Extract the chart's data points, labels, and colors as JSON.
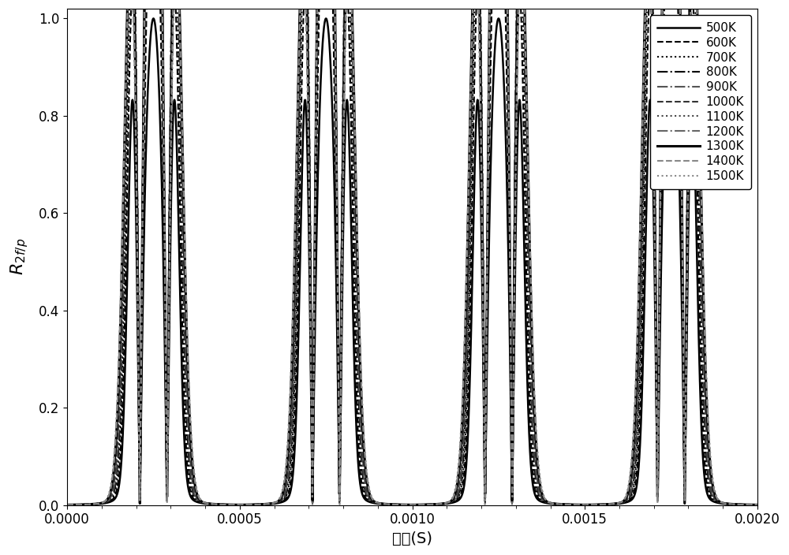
{
  "temperatures": [
    500,
    600,
    700,
    800,
    900,
    1000,
    1100,
    1200,
    1300,
    1400,
    1500
  ],
  "line_styles": [
    "-",
    "--",
    ":",
    "-.",
    "-.",
    "--",
    ":",
    "-.",
    "-",
    "--",
    ":"
  ],
  "line_colors": [
    "#000000",
    "#000000",
    "#000000",
    "#000000",
    "#555555",
    "#333333",
    "#444444",
    "#666666",
    "#000000",
    "#888888",
    "#888888"
  ],
  "line_widths": [
    1.8,
    1.5,
    1.5,
    1.5,
    1.5,
    1.5,
    1.5,
    1.5,
    2.2,
    1.5,
    1.5
  ],
  "xlabel": "时间(S)",
  "ylabel": "$R_{2f/p}$",
  "xlim": [
    0.0,
    0.002
  ],
  "ylim": [
    0.0,
    1.02
  ],
  "xticks": [
    0.0,
    0.0005,
    0.001,
    0.0015,
    0.002
  ],
  "yticks": [
    0.0,
    0.2,
    0.4,
    0.6,
    0.8,
    1.0
  ],
  "legend_labels": [
    "500K",
    "600K",
    "700K",
    "800K",
    "900K",
    "1000K",
    "1100K",
    "1200K",
    "1300K",
    "1400K",
    "1500K"
  ],
  "T0": 296.0,
  "E_lower": 1000.0,
  "nu_range": 1.0,
  "nu0": 0.0,
  "a_mod": 0.25,
  "scale": 1.0,
  "N_theta": 200,
  "n_points": 3000,
  "T_scan": 0.001
}
